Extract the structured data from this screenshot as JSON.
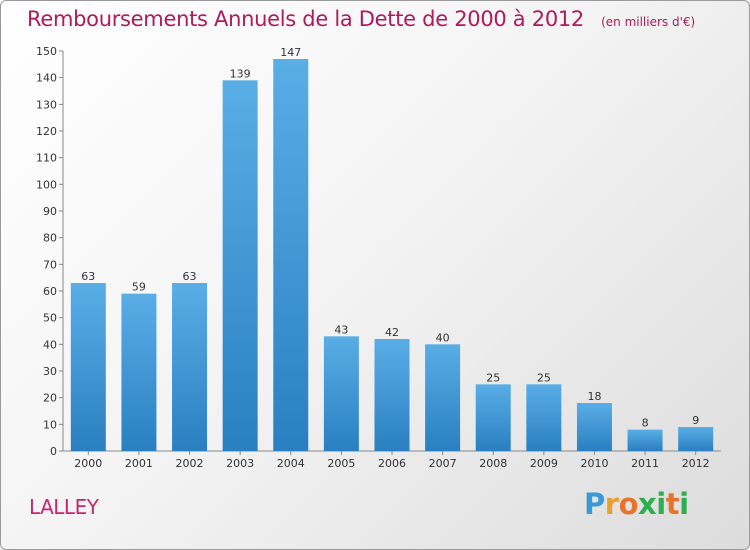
{
  "chart_data": {
    "type": "bar",
    "title": "Remboursements Annuels de la Dette de 2000 à 2012",
    "unit_note": "(en milliers d'€)",
    "categories": [
      "2000",
      "2001",
      "2002",
      "2003",
      "2004",
      "2005",
      "2006",
      "2007",
      "2008",
      "2009",
      "2010",
      "2011",
      "2012"
    ],
    "values": [
      63,
      59,
      63,
      139,
      147,
      43,
      42,
      40,
      25,
      25,
      18,
      8,
      9
    ],
    "ylim": [
      0,
      150
    ],
    "yticks": [
      0,
      10,
      20,
      30,
      40,
      50,
      60,
      70,
      80,
      90,
      100,
      110,
      120,
      130,
      140,
      150
    ],
    "grid": false,
    "bar_color_top": "#5aaee6",
    "bar_color_bottom": "#2a7fc0"
  },
  "commune_name": "LALLEY",
  "brand": {
    "letters": [
      "P",
      "r",
      "o",
      "x",
      "i",
      "t",
      "i"
    ],
    "colors": [
      "#3a9ad9",
      "#e8a12c",
      "#e8742c",
      "#2fae4f",
      "#2fae4f",
      "#e8742c",
      "#2fae4f"
    ]
  }
}
